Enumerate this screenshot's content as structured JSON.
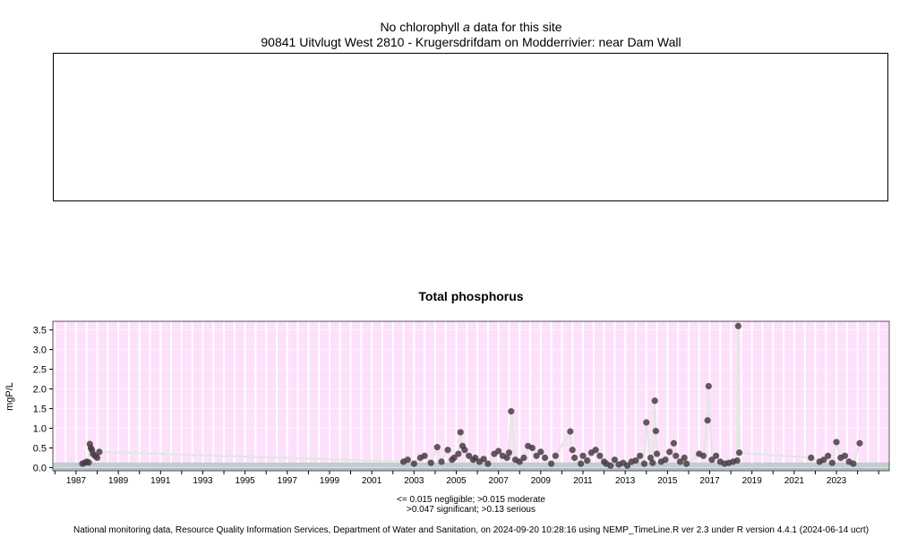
{
  "header": {
    "line1_prefix": "No chlorophyll",
    "line1_italic": "a",
    "line1_suffix": "data for this site",
    "site": "90841 Uitvlugt West 2810 - Krugersdrifdam on Modderrivier: near Dam Wall"
  },
  "chart_data": {
    "type": "scatter",
    "title": "Total phosphorus",
    "ylabel": "mgP/L",
    "xlabel": "",
    "xlim": [
      1985.9,
      2025.5
    ],
    "ylim": [
      -0.08,
      3.72
    ],
    "yticks": [
      0.0,
      0.5,
      1.0,
      1.5,
      2.0,
      2.5,
      3.0,
      3.5
    ],
    "ytick_labels": [
      "0.0",
      "0.5",
      "1.0",
      "1.5",
      "2.0",
      "2.5",
      "3.0",
      "3.5"
    ],
    "xticks": [
      1987,
      1989,
      1991,
      1993,
      1995,
      1997,
      1999,
      2001,
      2003,
      2005,
      2007,
      2009,
      2011,
      2013,
      2015,
      2017,
      2019,
      2021,
      2023
    ],
    "xtick_labels": [
      "1987",
      "1989",
      "1991",
      "1993",
      "1995",
      "1997",
      "1999",
      "2001",
      "2003",
      "2005",
      "2007",
      "2009",
      "2011",
      "2013",
      "2015",
      "2017",
      "2019",
      "2021",
      "2023"
    ],
    "grid": true,
    "thresholds": [
      0.015,
      0.047,
      0.13
    ],
    "colors": {
      "panel_background": "#fde0fb",
      "vertical_grid": "#ffffff",
      "band_negligible": "#aebdcb",
      "band_moderate": "#c3ccca",
      "points": "#4a3c44",
      "trend_line": "#e6e6e6"
    },
    "series": [
      {
        "points": [
          [
            1987.3,
            0.1
          ],
          [
            1987.4,
            0.12
          ],
          [
            1987.5,
            0.15
          ],
          [
            1987.6,
            0.13
          ],
          [
            1987.65,
            0.6
          ],
          [
            1987.7,
            0.5
          ],
          [
            1987.75,
            0.45
          ],
          [
            1987.8,
            0.35
          ],
          [
            1987.9,
            0.3
          ],
          [
            1988.0,
            0.25
          ],
          [
            1988.1,
            0.4
          ],
          [
            2002.5,
            0.15
          ],
          [
            2002.7,
            0.2
          ],
          [
            2003.0,
            0.1
          ],
          [
            2003.3,
            0.25
          ],
          [
            2003.5,
            0.3
          ],
          [
            2003.8,
            0.12
          ],
          [
            2004.1,
            0.52
          ],
          [
            2004.3,
            0.15
          ],
          [
            2004.6,
            0.45
          ],
          [
            2004.8,
            0.2
          ],
          [
            2004.9,
            0.25
          ],
          [
            2005.1,
            0.35
          ],
          [
            2005.2,
            0.9
          ],
          [
            2005.3,
            0.55
          ],
          [
            2005.4,
            0.45
          ],
          [
            2005.6,
            0.3
          ],
          [
            2005.8,
            0.2
          ],
          [
            2005.9,
            0.25
          ],
          [
            2006.1,
            0.15
          ],
          [
            2006.3,
            0.22
          ],
          [
            2006.5,
            0.1
          ],
          [
            2006.8,
            0.35
          ],
          [
            2007.0,
            0.42
          ],
          [
            2007.2,
            0.3
          ],
          [
            2007.4,
            0.25
          ],
          [
            2007.5,
            0.38
          ],
          [
            2007.6,
            1.43
          ],
          [
            2007.8,
            0.2
          ],
          [
            2008.0,
            0.15
          ],
          [
            2008.2,
            0.25
          ],
          [
            2008.4,
            0.55
          ],
          [
            2008.6,
            0.5
          ],
          [
            2008.8,
            0.3
          ],
          [
            2009.0,
            0.4
          ],
          [
            2009.2,
            0.25
          ],
          [
            2009.5,
            0.1
          ],
          [
            2009.7,
            0.3
          ],
          [
            2010.4,
            0.92
          ],
          [
            2010.5,
            0.45
          ],
          [
            2010.6,
            0.25
          ],
          [
            2010.9,
            0.1
          ],
          [
            2011.0,
            0.3
          ],
          [
            2011.2,
            0.18
          ],
          [
            2011.4,
            0.38
          ],
          [
            2011.6,
            0.45
          ],
          [
            2011.8,
            0.3
          ],
          [
            2012.0,
            0.15
          ],
          [
            2012.1,
            0.1
          ],
          [
            2012.3,
            0.05
          ],
          [
            2012.5,
            0.2
          ],
          [
            2012.7,
            0.08
          ],
          [
            2012.9,
            0.12
          ],
          [
            2013.1,
            0.05
          ],
          [
            2013.3,
            0.15
          ],
          [
            2013.5,
            0.18
          ],
          [
            2013.7,
            0.3
          ],
          [
            2013.9,
            0.1
          ],
          [
            2014.0,
            1.15
          ],
          [
            2014.2,
            0.25
          ],
          [
            2014.3,
            0.12
          ],
          [
            2014.4,
            1.7
          ],
          [
            2014.45,
            0.93
          ],
          [
            2014.5,
            0.35
          ],
          [
            2014.7,
            0.15
          ],
          [
            2014.9,
            0.2
          ],
          [
            2015.1,
            0.4
          ],
          [
            2015.3,
            0.62
          ],
          [
            2015.4,
            0.3
          ],
          [
            2015.6,
            0.15
          ],
          [
            2015.8,
            0.25
          ],
          [
            2015.9,
            0.1
          ],
          [
            2016.5,
            0.35
          ],
          [
            2016.7,
            0.3
          ],
          [
            2016.9,
            1.2
          ],
          [
            2016.95,
            2.07
          ],
          [
            2017.1,
            0.2
          ],
          [
            2017.3,
            0.3
          ],
          [
            2017.5,
            0.15
          ],
          [
            2017.7,
            0.1
          ],
          [
            2017.9,
            0.12
          ],
          [
            2018.1,
            0.15
          ],
          [
            2018.3,
            0.18
          ],
          [
            2018.35,
            3.6
          ],
          [
            2018.4,
            0.38
          ],
          [
            2021.8,
            0.25
          ],
          [
            2022.2,
            0.15
          ],
          [
            2022.4,
            0.2
          ],
          [
            2022.6,
            0.3
          ],
          [
            2022.8,
            0.12
          ],
          [
            2023.0,
            0.65
          ],
          [
            2023.2,
            0.25
          ],
          [
            2023.4,
            0.3
          ],
          [
            2023.6,
            0.15
          ],
          [
            2023.8,
            0.1
          ],
          [
            2024.1,
            0.62
          ]
        ]
      }
    ]
  },
  "legend": {
    "line1": "<= 0.015 negligible; >0.015 moderate",
    "line2": ">0.047 significant; >0.13 serious"
  },
  "footer": {
    "text": "National monitoring data, Resource Quality Information Services, Department of Water and Sanitation, on 2024-09-20 10:28:16 using NEMP_TimeLine.R ver 2.3 under R version 4.4.1 (2024-06-14 ucrt)"
  }
}
